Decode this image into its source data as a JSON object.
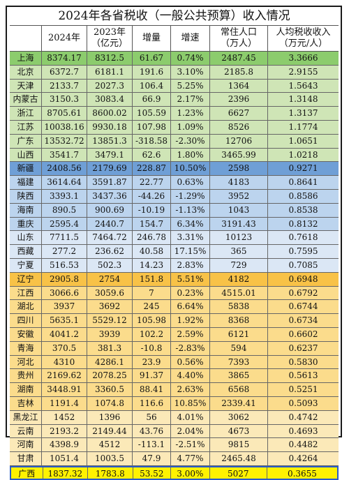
{
  "title": "2024年各省税收（一般公共预算）收入情况",
  "headers": [
    [
      "",
      ""
    ],
    [
      "2024年",
      ""
    ],
    [
      "2023年",
      "（亿元）"
    ],
    [
      "增量",
      ""
    ],
    [
      "增速",
      ""
    ],
    [
      "常住人口",
      "（万人）"
    ],
    [
      "人均税收收入",
      "（万元/人）"
    ]
  ],
  "rows": [
    {
      "p": "上海",
      "a": "8374.17",
      "b": "8312.5",
      "inc": "61.67",
      "g": "0.74%",
      "pop": "2487.45",
      "pc": "3.3666",
      "bg": "bg-green-top"
    },
    {
      "p": "北京",
      "a": "6372.7",
      "b": "6181.1",
      "inc": "191.6",
      "g": "3.10%",
      "pop": "2185.8",
      "pc": "2.9155",
      "bg": "bg-green"
    },
    {
      "p": "天津",
      "a": "2133.7",
      "b": "2027.3",
      "inc": "106.4",
      "g": "5.25%",
      "pop": "1364",
      "pc": "1.5643",
      "bg": "bg-green"
    },
    {
      "p": "内蒙古",
      "a": "3150.3",
      "b": "3083.4",
      "inc": "66.9",
      "g": "2.17%",
      "pop": "2396",
      "pc": "1.3148",
      "bg": "bg-green"
    },
    {
      "p": "浙江",
      "a": "8705.61",
      "b": "8600.02",
      "inc": "105.59",
      "g": "1.23%",
      "pop": "6627",
      "pc": "1.3137",
      "bg": "bg-green"
    },
    {
      "p": "江苏",
      "a": "10038.16",
      "b": "9930.18",
      "inc": "107.98",
      "g": "1.09%",
      "pop": "8526",
      "pc": "1.1774",
      "bg": "bg-green"
    },
    {
      "p": "广东",
      "a": "13532.72",
      "b": "13851.3",
      "inc": "-318.58",
      "g": "-2.30%",
      "pop": "12706",
      "pc": "1.0651",
      "bg": "bg-green"
    },
    {
      "p": "山西",
      "a": "3541.7",
      "b": "3479.1",
      "inc": "62.6",
      "g": "1.80%",
      "pop": "3465.99",
      "pc": "1.0218",
      "bg": "bg-green"
    },
    {
      "p": "新疆",
      "a": "2408.56",
      "b": "2179.69",
      "inc": "228.87",
      "g": "10.50%",
      "pop": "2598",
      "pc": "0.9271",
      "bg": "bg-blue-top"
    },
    {
      "p": "福建",
      "a": "3614.64",
      "b": "3591.87",
      "inc": "22.77",
      "g": "0.63%",
      "pop": "4183",
      "pc": "0.8641",
      "bg": "bg-blue"
    },
    {
      "p": "陕西",
      "a": "3393.1",
      "b": "3437.36",
      "inc": "-44.26",
      "g": "-1.29%",
      "pop": "3952",
      "pc": "0.8586",
      "bg": "bg-blue"
    },
    {
      "p": "海南",
      "a": "890.5",
      "b": "900.69",
      "inc": "-10.19",
      "g": "-1.13%",
      "pop": "1043",
      "pc": "0.8538",
      "bg": "bg-blue"
    },
    {
      "p": "重庆",
      "a": "2595.4",
      "b": "2440.7",
      "inc": "154.7",
      "g": "6.34%",
      "pop": "3191.43",
      "pc": "0.8132",
      "bg": "bg-blue"
    },
    {
      "p": "山东",
      "a": "7711.5",
      "b": "7464.72",
      "inc": "246.78",
      "g": "3.31%",
      "pop": "10123",
      "pc": "0.7618",
      "bg": "bg-lightblue"
    },
    {
      "p": "西藏",
      "a": "277.2",
      "b": "236.62",
      "inc": "40.58",
      "g": "17.15%",
      "pop": "365",
      "pc": "0.7595",
      "bg": "bg-lightblue"
    },
    {
      "p": "宁夏",
      "a": "516.53",
      "b": "502.3",
      "inc": "14.23",
      "g": "2.83%",
      "pop": "729",
      "pc": "0.7085",
      "bg": "bg-lightblue"
    },
    {
      "p": "辽宁",
      "a": "2905.8",
      "b": "2754",
      "inc": "151.8",
      "g": "5.51%",
      "pop": "4182",
      "pc": "0.6948",
      "bg": "bg-orange-top"
    },
    {
      "p": "江西",
      "a": "3066.6",
      "b": "3059.6",
      "inc": "7",
      "g": "0.23%",
      "pop": "4515.01",
      "pc": "0.6792",
      "bg": "bg-orange"
    },
    {
      "p": "湖北",
      "a": "3937",
      "b": "3692",
      "inc": "245",
      "g": "6.64%",
      "pop": "5838",
      "pc": "0.6744",
      "bg": "bg-orange"
    },
    {
      "p": "四川",
      "a": "5635.1",
      "b": "5529.12",
      "inc": "105.98",
      "g": "1.92%",
      "pop": "8368",
      "pc": "0.6734",
      "bg": "bg-orange"
    },
    {
      "p": "安徽",
      "a": "4041.2",
      "b": "3939",
      "inc": "102.2",
      "g": "2.59%",
      "pop": "6121",
      "pc": "0.6602",
      "bg": "bg-orange"
    },
    {
      "p": "青海",
      "a": "370.5",
      "b": "381.3",
      "inc": "-10.8",
      "g": "-2.83%",
      "pop": "594",
      "pc": "0.6237",
      "bg": "bg-orange"
    },
    {
      "p": "河北",
      "a": "4310",
      "b": "4286.1",
      "inc": "23.9",
      "g": "0.56%",
      "pop": "7393",
      "pc": "0.5830",
      "bg": "bg-orange"
    },
    {
      "p": "贵州",
      "a": "2169.62",
      "b": "2078.25",
      "inc": "91.37",
      "g": "4.40%",
      "pop": "3865",
      "pc": "0.5613",
      "bg": "bg-orange"
    },
    {
      "p": "湖南",
      "a": "3448.91",
      "b": "3360.5",
      "inc": "88.41",
      "g": "2.63%",
      "pop": "6568",
      "pc": "0.5251",
      "bg": "bg-orange"
    },
    {
      "p": "吉林",
      "a": "1191.4",
      "b": "1074.8",
      "inc": "116.6",
      "g": "10.85%",
      "pop": "2339.41",
      "pc": "0.5093",
      "bg": "bg-orange"
    },
    {
      "p": "黑龙江",
      "a": "1452",
      "b": "1396",
      "inc": "56",
      "g": "4.01%",
      "pop": "3062",
      "pc": "0.4742",
      "bg": "bg-cream"
    },
    {
      "p": "云南",
      "a": "2193.2",
      "b": "2149.44",
      "inc": "43.76",
      "g": "2.04%",
      "pop": "4673",
      "pc": "0.4693",
      "bg": "bg-cream"
    },
    {
      "p": "河南",
      "a": "4398.9",
      "b": "4512",
      "inc": "-113.1",
      "g": "-2.51%",
      "pop": "9815",
      "pc": "0.4482",
      "bg": "bg-cream"
    },
    {
      "p": "甘肃",
      "a": "1051.4",
      "b": "1003.5",
      "inc": "47.9",
      "g": "4.77%",
      "pop": "2465.48",
      "pc": "0.4264",
      "bg": "bg-cream"
    },
    {
      "p": "广西",
      "a": "1837.32",
      "b": "1783.8",
      "inc": "53.52",
      "g": "3.00%",
      "pop": "5027",
      "pc": "0.3655",
      "bg": "bg-yellow"
    }
  ]
}
